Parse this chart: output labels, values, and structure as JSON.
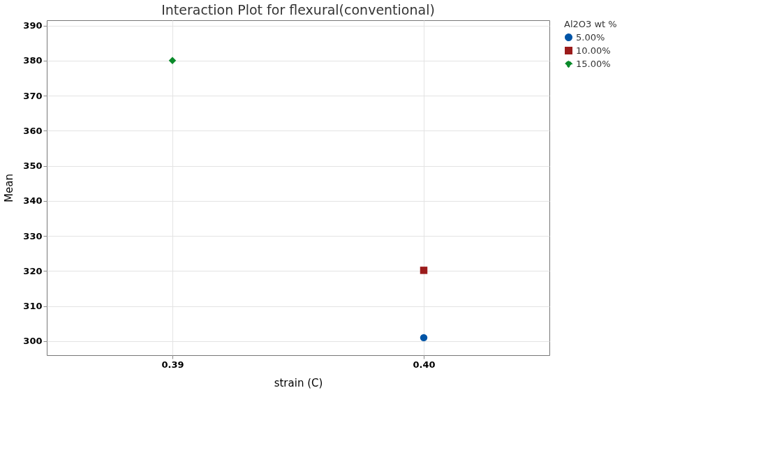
{
  "chart_data": {
    "type": "line",
    "title": "Interaction Plot for flexural(conventional)",
    "xlabel": "strain (C)",
    "ylabel": "Mean",
    "legend_title": "Al2O3 wt %",
    "categories": [
      "0.39",
      "0.40"
    ],
    "series": [
      {
        "name": "5.00%",
        "color": "#0054a6",
        "marker": "circle",
        "line_style": "solid",
        "values": [
          null,
          301
        ]
      },
      {
        "name": "10.00%",
        "color": "#9b1b1b",
        "marker": "square",
        "line_style": "solid",
        "values": [
          null,
          320.2
        ]
      },
      {
        "name": "15.00%",
        "color": "#0a8a2a",
        "marker": "diamond",
        "line_style": "dashed",
        "values": [
          380,
          null
        ]
      }
    ],
    "ylim": [
      296,
      391.5
    ],
    "yticks": [
      300,
      310,
      320,
      330,
      340,
      350,
      360,
      370,
      380,
      390
    ],
    "grid": true,
    "legend": "top right"
  }
}
